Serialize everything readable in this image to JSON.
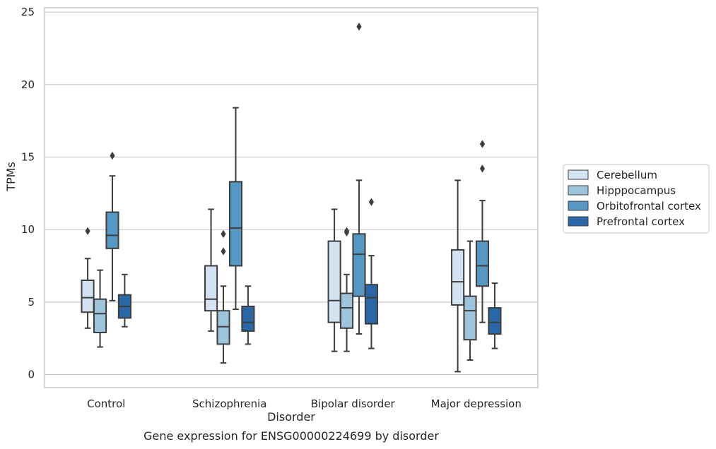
{
  "chart_data": {
    "type": "box",
    "title": "",
    "caption": "Gene expression for ENSG00000224699 by disorder",
    "xlabel": "Disorder",
    "ylabel": "TPMs",
    "ylim": [
      -0.9,
      25.3
    ],
    "yticks": [
      0,
      5,
      10,
      15,
      20,
      25
    ],
    "grid": "horizontal",
    "legend_position": "right",
    "categories": [
      "Control",
      "Schizophrenia",
      "Bipolar disorder",
      "Major depression"
    ],
    "series": [
      {
        "name": "Cerebellum",
        "color": "#d4e3f1",
        "boxes": [
          {
            "whislo": 3.2,
            "q1": 4.3,
            "med": 5.3,
            "q3": 6.5,
            "whishi": 8.0,
            "fliers": [
              9.9
            ]
          },
          {
            "whislo": 3.0,
            "q1": 4.4,
            "med": 5.2,
            "q3": 7.5,
            "whishi": 11.4,
            "fliers": []
          },
          {
            "whislo": 1.6,
            "q1": 3.6,
            "med": 5.1,
            "q3": 9.2,
            "whishi": 11.4,
            "fliers": []
          },
          {
            "whislo": 0.2,
            "q1": 4.8,
            "med": 6.4,
            "q3": 8.6,
            "whishi": 13.4,
            "fliers": []
          }
        ]
      },
      {
        "name": "Hipppocampus",
        "color": "#9ec4dc",
        "boxes": [
          {
            "whislo": 1.9,
            "q1": 2.9,
            "med": 4.2,
            "q3": 5.2,
            "whishi": 7.2,
            "fliers": []
          },
          {
            "whislo": 0.8,
            "q1": 2.1,
            "med": 3.3,
            "q3": 4.4,
            "whishi": 6.1,
            "fliers": [
              8.5,
              9.7
            ]
          },
          {
            "whislo": 1.6,
            "q1": 3.2,
            "med": 4.6,
            "q3": 5.6,
            "whishi": 6.9,
            "fliers": [
              9.8,
              9.9
            ]
          },
          {
            "whislo": 1.0,
            "q1": 2.4,
            "med": 4.4,
            "q3": 5.4,
            "whishi": 9.2,
            "fliers": []
          }
        ]
      },
      {
        "name": "Orbitofrontal cortex",
        "color": "#5798c3",
        "boxes": [
          {
            "whislo": 5.1,
            "q1": 8.7,
            "med": 9.6,
            "q3": 11.2,
            "whishi": 13.7,
            "fliers": [
              15.1
            ]
          },
          {
            "whislo": 4.5,
            "q1": 7.5,
            "med": 10.1,
            "q3": 13.3,
            "whishi": 18.4,
            "fliers": []
          },
          {
            "whislo": 2.8,
            "q1": 5.4,
            "med": 8.3,
            "q3": 9.7,
            "whishi": 13.4,
            "fliers": [
              24.0
            ]
          },
          {
            "whislo": 3.6,
            "q1": 6.1,
            "med": 7.5,
            "q3": 9.2,
            "whishi": 12.0,
            "fliers": [
              14.2,
              15.9
            ]
          }
        ]
      },
      {
        "name": "Prefrontal cortex",
        "color": "#2b67a7",
        "boxes": [
          {
            "whislo": 3.3,
            "q1": 3.9,
            "med": 4.7,
            "q3": 5.5,
            "whishi": 6.9,
            "fliers": []
          },
          {
            "whislo": 2.1,
            "q1": 3.0,
            "med": 3.6,
            "q3": 4.7,
            "whishi": 6.1,
            "fliers": []
          },
          {
            "whislo": 1.8,
            "q1": 3.5,
            "med": 5.3,
            "q3": 6.2,
            "whishi": 8.2,
            "fliers": [
              11.9
            ]
          },
          {
            "whislo": 1.8,
            "q1": 2.8,
            "med": 3.6,
            "q3": 4.6,
            "whishi": 6.3,
            "fliers": []
          }
        ]
      }
    ]
  }
}
